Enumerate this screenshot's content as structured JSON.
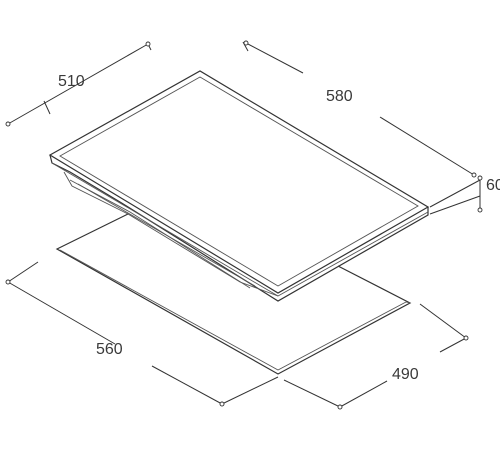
{
  "dimensions": {
    "hob_depth": "510",
    "hob_width": "580",
    "hob_height": "60",
    "cutout_width": "560",
    "cutout_depth": "490"
  }
}
